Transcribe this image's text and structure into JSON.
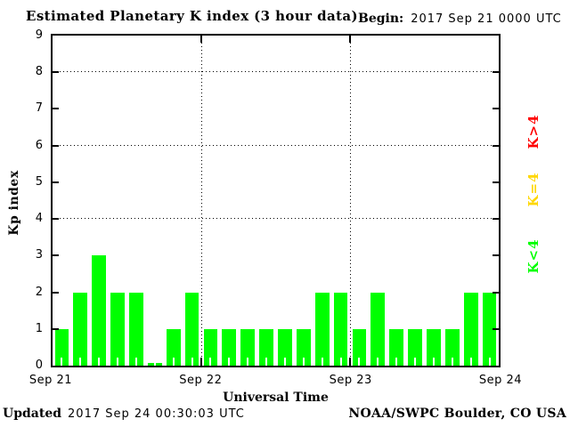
{
  "title": "Estimated Planetary K index (3 hour data)",
  "begin": {
    "label": "Begin:",
    "value": "2017 Sep 21 0000 UTC"
  },
  "footer": {
    "updated_label": "Updated",
    "updated_value": "2017 Sep 24 00:30:03 UTC",
    "credit": "NOAA/SWPC Boulder, CO USA"
  },
  "chart_data": {
    "type": "bar",
    "title": "Estimated Planetary K index (3 hour data)",
    "xlabel": "Universal Time",
    "ylabel": "Kp index",
    "ylim": [
      0,
      9
    ],
    "ytick_labels": [
      "0",
      "1",
      "2",
      "3",
      "4",
      "5",
      "6",
      "7",
      "8",
      "9"
    ],
    "xtick_labels": [
      "Sep 21",
      "Sep 22",
      "Sep 23",
      "Sep 24"
    ],
    "grid_y_values": [
      4,
      6,
      8
    ],
    "grid_x_day_boundaries": [
      "Sep 22",
      "Sep 23"
    ],
    "hours_per_bar": 3,
    "bar_color": "#00ff00",
    "values": [
      1,
      2,
      3,
      2,
      2,
      0,
      1,
      2,
      1,
      1,
      1,
      1,
      1,
      1,
      2,
      2,
      1,
      2,
      1,
      1,
      1,
      1,
      2,
      2
    ],
    "legend": [
      {
        "label": "K>4",
        "color": "#ff0000"
      },
      {
        "label": "K=4",
        "color": "#ffd700"
      },
      {
        "label": "K<4",
        "color": "#00ff00"
      }
    ]
  }
}
